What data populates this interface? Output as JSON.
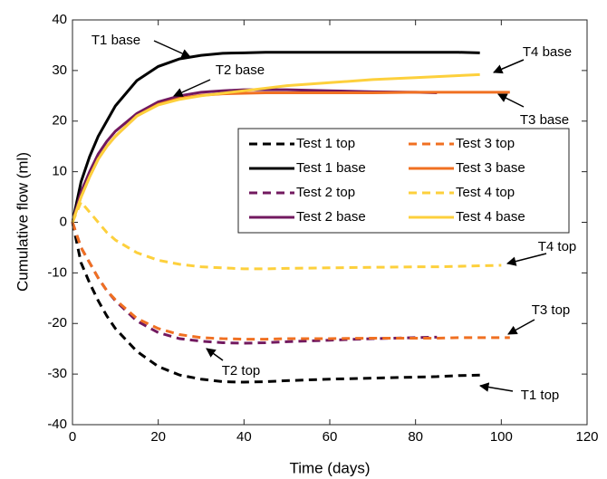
{
  "chart_data": {
    "type": "line",
    "x_label": "Time (days)",
    "y_label": "Cumulative flow (ml)",
    "xlim": [
      0,
      120
    ],
    "xticks": [
      0,
      20,
      40,
      60,
      80,
      100,
      120
    ],
    "ylim": [
      -40,
      40
    ],
    "yticks": [
      -40,
      -30,
      -20,
      -10,
      0,
      10,
      20,
      30,
      40
    ],
    "grid": false,
    "legend": "upper right",
    "x": [
      0,
      2,
      4,
      6,
      8,
      10,
      15,
      20,
      25,
      30,
      35,
      40,
      45,
      50,
      60,
      70,
      80,
      85,
      90,
      95,
      100,
      102
    ],
    "series": [
      {
        "name": "Test 1 top",
        "color": "#000000",
        "style": "dashed",
        "values": [
          0,
          -8,
          -12,
          -15.5,
          -18.5,
          -21,
          -25.5,
          -28.5,
          -30.2,
          -31,
          -31.5,
          -31.6,
          -31.5,
          -31.3,
          -31,
          -30.8,
          -30.6,
          -30.5,
          -30.3,
          -30.2,
          null,
          null
        ]
      },
      {
        "name": "Test 1 base",
        "color": "#000000",
        "style": "solid",
        "values": [
          0,
          8,
          13,
          17,
          20,
          23,
          28,
          30.8,
          32.3,
          33,
          33.4,
          33.5,
          33.6,
          33.6,
          33.6,
          33.6,
          33.6,
          33.6,
          33.6,
          33.5,
          null,
          null
        ]
      },
      {
        "name": "Test 2 top",
        "color": "#72195f",
        "style": "dashed",
        "values": [
          0,
          -5,
          -8,
          -11,
          -13.5,
          -15.5,
          -19.5,
          -21.8,
          -23,
          -23.5,
          -23.8,
          -23.9,
          -23.8,
          -23.6,
          -23.3,
          -23,
          -22.8,
          -22.7,
          null,
          null,
          null,
          null
        ]
      },
      {
        "name": "Test 2 base",
        "color": "#72195f",
        "style": "solid",
        "values": [
          0,
          6,
          10,
          13.5,
          16,
          18,
          21.5,
          23.8,
          25,
          25.7,
          26,
          26.2,
          26.2,
          26.2,
          26,
          25.8,
          25.7,
          25.6,
          null,
          null,
          null,
          null
        ]
      },
      {
        "name": "Test 3 top",
        "color": "#f07022",
        "style": "dashed",
        "values": [
          0,
          -5,
          -8,
          -11,
          -13.5,
          -15.3,
          -19,
          -21,
          -22.2,
          -22.8,
          -23,
          -23.1,
          -23.1,
          -23,
          -23,
          -22.9,
          -22.9,
          -22.9,
          -22.8,
          -22.8,
          -22.8,
          -22.8
        ]
      },
      {
        "name": "Test 3 base",
        "color": "#f07022",
        "style": "solid",
        "values": [
          0,
          5,
          9,
          12.5,
          15,
          17,
          21,
          23.3,
          24.5,
          25.1,
          25.4,
          25.5,
          25.6,
          25.6,
          25.6,
          25.6,
          25.7,
          25.7,
          25.7,
          25.7,
          25.7,
          25.7
        ]
      },
      {
        "name": "Test 4 top",
        "color": "#fdd03c",
        "style": "dashed",
        "values": [
          0,
          4,
          2,
          0,
          -2,
          -3.5,
          -6,
          -7.5,
          -8.3,
          -8.8,
          -9,
          -9.2,
          -9.2,
          -9.1,
          -9,
          -8.9,
          -8.8,
          -8.8,
          -8.7,
          -8.6,
          -8.5,
          null
        ]
      },
      {
        "name": "Test 4 base",
        "color": "#fdd03c",
        "style": "solid",
        "values": [
          0,
          5,
          9,
          12.5,
          15,
          17,
          21,
          23.2,
          24.3,
          25,
          25.5,
          26,
          26.5,
          27,
          27.6,
          28.2,
          28.6,
          28.8,
          29,
          29.2,
          null,
          null
        ]
      }
    ],
    "annotations": [
      {
        "text": "T1 base"
      },
      {
        "text": "T2 base"
      },
      {
        "text": "T4 base"
      },
      {
        "text": "T3 base"
      },
      {
        "text": "T4 top"
      },
      {
        "text": "T3 top"
      },
      {
        "text": "T2 top"
      },
      {
        "text": "T1 top"
      }
    ]
  }
}
